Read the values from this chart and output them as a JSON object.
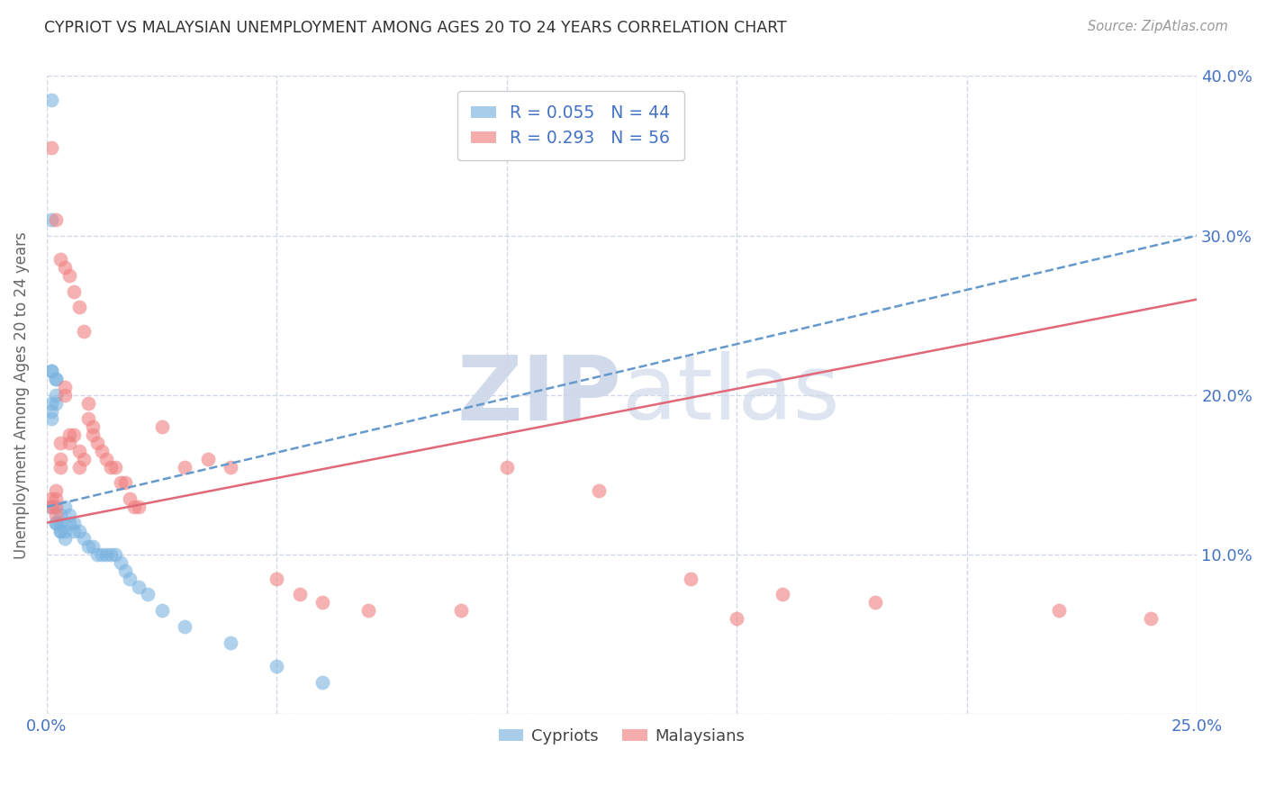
{
  "title": "CYPRIOT VS MALAYSIAN UNEMPLOYMENT AMONG AGES 20 TO 24 YEARS CORRELATION CHART",
  "source": "Source: ZipAtlas.com",
  "ylabel": "Unemployment Among Ages 20 to 24 years",
  "x_min": 0.0,
  "x_max": 0.25,
  "y_min": 0.0,
  "y_max": 0.4,
  "x_ticks": [
    0.0,
    0.05,
    0.1,
    0.15,
    0.2,
    0.25
  ],
  "x_tick_labels": [
    "0.0%",
    "",
    "",
    "",
    "",
    "25.0%"
  ],
  "y_ticks": [
    0.0,
    0.1,
    0.2,
    0.3,
    0.4
  ],
  "y_tick_labels_right": [
    "",
    "10.0%",
    "20.0%",
    "30.0%",
    "40.0%"
  ],
  "cypriot_color": "#7ab3e0",
  "malaysian_color": "#f08080",
  "background_color": "#ffffff",
  "watermark_color": "#c8d4e8",
  "grid_color": "#d0d8e8",
  "trend_line_cypriot_color": "#6699cc",
  "trend_line_malaysian_color": "#e06878",
  "cypriot_x": [
    0.001,
    0.001,
    0.001,
    0.001,
    0.001,
    0.001,
    0.001,
    0.001,
    0.002,
    0.002,
    0.002,
    0.002,
    0.002,
    0.002,
    0.003,
    0.003,
    0.003,
    0.003,
    0.004,
    0.004,
    0.004,
    0.005,
    0.005,
    0.006,
    0.006,
    0.007,
    0.008,
    0.009,
    0.01,
    0.011,
    0.012,
    0.013,
    0.014,
    0.015,
    0.016,
    0.017,
    0.018,
    0.02,
    0.022,
    0.025,
    0.03,
    0.04,
    0.05,
    0.06
  ],
  "cypriot_y": [
    0.385,
    0.31,
    0.215,
    0.215,
    0.195,
    0.19,
    0.185,
    0.13,
    0.21,
    0.21,
    0.2,
    0.195,
    0.12,
    0.12,
    0.125,
    0.12,
    0.115,
    0.115,
    0.13,
    0.115,
    0.11,
    0.125,
    0.12,
    0.12,
    0.115,
    0.115,
    0.11,
    0.105,
    0.105,
    0.1,
    0.1,
    0.1,
    0.1,
    0.1,
    0.095,
    0.09,
    0.085,
    0.08,
    0.075,
    0.065,
    0.055,
    0.045,
    0.03,
    0.02
  ],
  "malaysian_x": [
    0.001,
    0.001,
    0.001,
    0.002,
    0.002,
    0.002,
    0.002,
    0.002,
    0.003,
    0.003,
    0.003,
    0.003,
    0.004,
    0.004,
    0.004,
    0.005,
    0.005,
    0.005,
    0.006,
    0.006,
    0.007,
    0.007,
    0.007,
    0.008,
    0.008,
    0.009,
    0.009,
    0.01,
    0.01,
    0.011,
    0.012,
    0.013,
    0.014,
    0.015,
    0.016,
    0.017,
    0.018,
    0.019,
    0.02,
    0.025,
    0.03,
    0.035,
    0.04,
    0.05,
    0.055,
    0.06,
    0.07,
    0.09,
    0.1,
    0.12,
    0.14,
    0.15,
    0.16,
    0.18,
    0.22,
    0.24
  ],
  "malaysian_y": [
    0.355,
    0.135,
    0.13,
    0.31,
    0.14,
    0.135,
    0.13,
    0.125,
    0.285,
    0.17,
    0.16,
    0.155,
    0.28,
    0.205,
    0.2,
    0.275,
    0.175,
    0.17,
    0.265,
    0.175,
    0.255,
    0.165,
    0.155,
    0.24,
    0.16,
    0.195,
    0.185,
    0.18,
    0.175,
    0.17,
    0.165,
    0.16,
    0.155,
    0.155,
    0.145,
    0.145,
    0.135,
    0.13,
    0.13,
    0.18,
    0.155,
    0.16,
    0.155,
    0.085,
    0.075,
    0.07,
    0.065,
    0.065,
    0.155,
    0.14,
    0.085,
    0.06,
    0.075,
    0.07,
    0.065,
    0.06
  ],
  "cypriot_trend": [
    0.13,
    0.3
  ],
  "malaysian_trend": [
    0.12,
    0.26
  ],
  "x_trend_start": 0.0,
  "x_trend_end": 0.25
}
